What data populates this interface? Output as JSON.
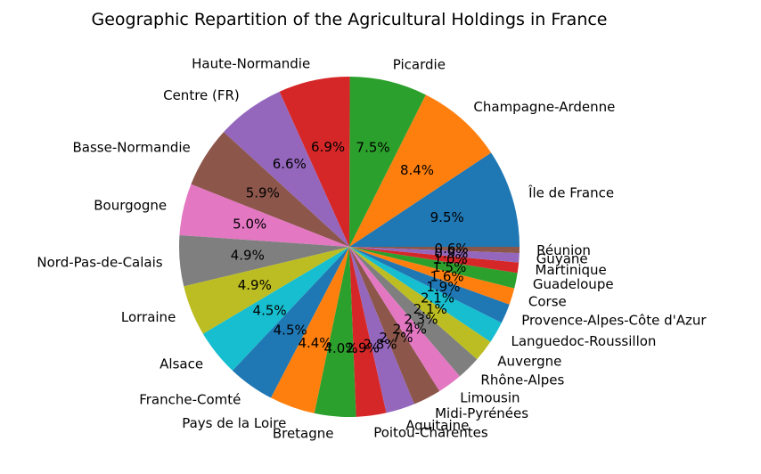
{
  "chart_data": {
    "type": "pie",
    "title": "Geographic Repartition of the Agricultural Holdings in France",
    "start_angle_deg": 0,
    "direction": "counterclockwise",
    "slices": [
      {
        "label": "Île de France",
        "value": 9.5,
        "pct_label": "9.5%",
        "color": "#1f77b4"
      },
      {
        "label": "Champagne-Ardenne",
        "value": 8.4,
        "pct_label": "8.4%",
        "color": "#ff7f0e"
      },
      {
        "label": "Picardie",
        "value": 7.5,
        "pct_label": "7.5%",
        "color": "#2ca02c"
      },
      {
        "label": "Haute-Normandie",
        "value": 6.9,
        "pct_label": "6.9%",
        "color": "#d62728"
      },
      {
        "label": "Centre (FR)",
        "value": 6.6,
        "pct_label": "6.6%",
        "color": "#9467bd"
      },
      {
        "label": "Basse-Normandie",
        "value": 5.9,
        "pct_label": "5.9%",
        "color": "#8c564b"
      },
      {
        "label": "Bourgogne",
        "value": 5.0,
        "pct_label": "5.0%",
        "color": "#e377c2"
      },
      {
        "label": "Nord-Pas-de-Calais",
        "value": 4.9,
        "pct_label": "4.9%",
        "color": "#7f7f7f"
      },
      {
        "label": "Lorraine",
        "value": 4.9,
        "pct_label": "4.9%",
        "color": "#bcbd22"
      },
      {
        "label": "Alsace",
        "value": 4.5,
        "pct_label": "4.5%",
        "color": "#17becf"
      },
      {
        "label": "Franche-Comté",
        "value": 4.5,
        "pct_label": "4.5%",
        "color": "#1f77b4"
      },
      {
        "label": "Pays de la Loire",
        "value": 4.4,
        "pct_label": "4.4%",
        "color": "#ff7f0e"
      },
      {
        "label": "Bretagne",
        "value": 4.0,
        "pct_label": "4.0%",
        "color": "#2ca02c"
      },
      {
        "label": "Poitou-Charentes",
        "value": 2.9,
        "pct_label": "2.9%",
        "color": "#d62728"
      },
      {
        "label": "Aquitaine",
        "value": 2.8,
        "pct_label": "2.8%",
        "color": "#9467bd"
      },
      {
        "label": "Midi-Pyrénées",
        "value": 2.7,
        "pct_label": "2.7%",
        "color": "#8c564b"
      },
      {
        "label": "Limousin",
        "value": 2.4,
        "pct_label": "2.4%",
        "color": "#e377c2"
      },
      {
        "label": "Rhône-Alpes",
        "value": 2.3,
        "pct_label": "2.3%",
        "color": "#7f7f7f"
      },
      {
        "label": "Auvergne",
        "value": 2.1,
        "pct_label": "2.1%",
        "color": "#bcbd22"
      },
      {
        "label": "Languedoc-Roussillon",
        "value": 2.1,
        "pct_label": "2.1%",
        "color": "#17becf"
      },
      {
        "label": "Provence-Alpes-Côte d'Azur",
        "value": 1.9,
        "pct_label": "1.9%",
        "color": "#1f77b4"
      },
      {
        "label": "Corse",
        "value": 1.6,
        "pct_label": "1.6%",
        "color": "#ff7f0e"
      },
      {
        "label": "Guadeloupe",
        "value": 1.5,
        "pct_label": "1.5%",
        "color": "#2ca02c"
      },
      {
        "label": "Martinique",
        "value": 1.0,
        "pct_label": "1.0%",
        "color": "#d62728"
      },
      {
        "label": "Guyane",
        "value": 0.9,
        "pct_label": "0.9%",
        "color": "#9467bd"
      },
      {
        "label": "Réunion",
        "value": 0.6,
        "pct_label": "0.6%",
        "color": "#8c564b"
      }
    ]
  }
}
